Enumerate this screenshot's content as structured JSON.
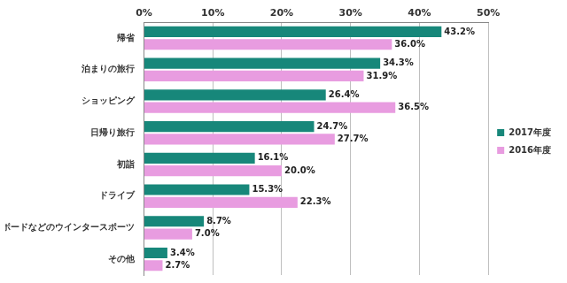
{
  "chart_data": {
    "type": "bar",
    "orientation": "horizontal",
    "categories": [
      "帰省",
      "泊まりの旅行",
      "ショッピング",
      "日帰り旅行",
      "初詣",
      "ドライブ",
      "スキーやスノーボードなどのウインタースポーツ",
      "その他"
    ],
    "series": [
      {
        "name": "2017年度",
        "color": "#17877a",
        "values": [
          43.2,
          34.3,
          26.4,
          24.7,
          16.1,
          15.3,
          8.7,
          3.4
        ],
        "value_labels": [
          "43.2%",
          "34.3%",
          "26.4%",
          "24.7%",
          "16.1%",
          "15.3%",
          "8.7%",
          "3.4%"
        ]
      },
      {
        "name": "2016年度",
        "color": "#e89ce0",
        "values": [
          36.0,
          31.9,
          36.5,
          27.7,
          20.0,
          22.3,
          7.0,
          2.7
        ],
        "value_labels": [
          "36.0%",
          "31.9%",
          "36.5%",
          "27.7%",
          "20.0%",
          "22.3%",
          "7.0%",
          "2.7%"
        ]
      }
    ],
    "xlim": [
      0,
      50
    ],
    "xticks": [
      {
        "value": 0,
        "label": "0%"
      },
      {
        "value": 10,
        "label": "10%"
      },
      {
        "value": 20,
        "label": "20%"
      },
      {
        "value": 30,
        "label": "30%"
      },
      {
        "value": 40,
        "label": "40%"
      },
      {
        "value": 50,
        "label": "50%"
      }
    ],
    "grid": true,
    "legend": "right",
    "data_labels": true
  }
}
